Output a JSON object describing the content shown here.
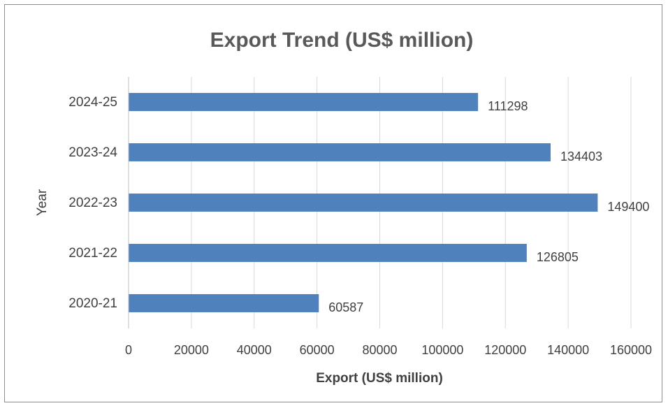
{
  "chart_data": {
    "type": "bar",
    "orientation": "horizontal",
    "title": "Export Trend (US$ million)",
    "xlabel": "Export (US$ million)",
    "ylabel": "Year",
    "categories": [
      "2020-21",
      "2021-22",
      "2022-23",
      "2023-24",
      "2024-25"
    ],
    "values": [
      60587,
      126805,
      149400,
      134403,
      111298
    ],
    "data_labels": [
      "60587",
      "126805",
      "149400",
      "134403",
      "111298"
    ],
    "xlim": [
      0,
      160000
    ],
    "xticks": [
      0,
      20000,
      40000,
      60000,
      80000,
      100000,
      120000,
      140000,
      160000
    ],
    "xtick_labels": [
      "0",
      "20000",
      "40000",
      "60000",
      "80000",
      "100000",
      "120000",
      "140000",
      "160000"
    ],
    "grid": "vertical",
    "legend": "none",
    "bar_color": "#4f81bd",
    "gridline_color": "#d9d9d9"
  }
}
